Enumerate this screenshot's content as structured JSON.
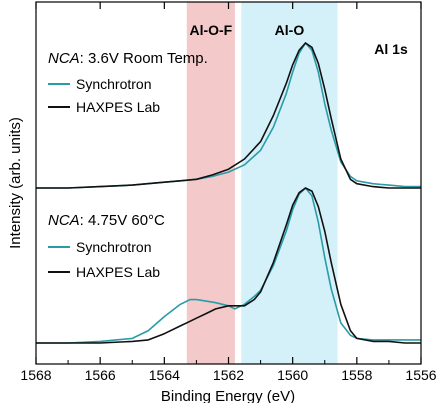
{
  "chart_data": {
    "type": "line",
    "xlabel": "Binding Energy (eV)",
    "ylabel": "Intensity (arb. units)",
    "xlim": [
      1568,
      1556
    ],
    "x_reversed": true,
    "x_ticks": [
      "1568",
      "1566",
      "1564",
      "1562",
      "1560",
      "1558",
      "1556"
    ],
    "y_ticks_shown": false,
    "grid": false,
    "corner_label": "Al 1s",
    "regions": [
      {
        "label": "Al-O-F",
        "x_range": [
          1563.3,
          1561.8
        ],
        "color": "#f4c9c9"
      },
      {
        "label": "Al-O",
        "x_range": [
          1561.6,
          1558.6
        ],
        "color": "#d4f0f8"
      }
    ],
    "panels": [
      {
        "condition_prefix": "NCA",
        "condition_rest": ": 3.6V Room Temp.",
        "offset": 1.0,
        "series": [
          {
            "name": "Synchrotron",
            "color": "#2a9ca8",
            "x": [
              1568,
              1567,
              1566,
              1565,
              1564,
              1563.5,
              1563,
              1562.5,
              1562,
              1561.5,
              1561,
              1560.6,
              1560.2,
              1560.0,
              1559.8,
              1559.6,
              1559.4,
              1559.2,
              1559.0,
              1558.8,
              1558.5,
              1558.2,
              1558.0,
              1557.5,
              1557,
              1556.5,
              1556
            ],
            "y": [
              0.0,
              0.0,
              0.01,
              0.02,
              0.04,
              0.05,
              0.06,
              0.08,
              0.11,
              0.16,
              0.26,
              0.42,
              0.65,
              0.8,
              0.93,
              1.0,
              0.95,
              0.8,
              0.58,
              0.4,
              0.18,
              0.08,
              0.05,
              0.03,
              0.02,
              0.01,
              0.01
            ]
          },
          {
            "name": "HAXPES Lab",
            "color": "#111111",
            "x": [
              1568,
              1567,
              1566,
              1565,
              1564,
              1563.5,
              1563,
              1562.5,
              1562,
              1561.5,
              1561,
              1560.6,
              1560.2,
              1560.0,
              1559.8,
              1559.6,
              1559.4,
              1559.2,
              1559.0,
              1558.8,
              1558.5,
              1558.2,
              1558.0,
              1557.5,
              1557,
              1556.5,
              1556
            ],
            "y": [
              0.0,
              0.0,
              0.01,
              0.02,
              0.04,
              0.05,
              0.06,
              0.09,
              0.13,
              0.2,
              0.32,
              0.5,
              0.72,
              0.85,
              0.95,
              1.0,
              0.97,
              0.86,
              0.68,
              0.48,
              0.2,
              0.06,
              0.03,
              0.01,
              0.0,
              0.0,
              0.0
            ]
          }
        ]
      },
      {
        "condition_prefix": "NCA",
        "condition_rest": ": 4.75V 60°C",
        "offset": 0.0,
        "series": [
          {
            "name": "Synchrotron",
            "color": "#2a9ca8",
            "x": [
              1568,
              1567,
              1566,
              1565,
              1564.5,
              1564,
              1563.5,
              1563.2,
              1563,
              1562.7,
              1562.4,
              1562,
              1561.8,
              1561.5,
              1561.2,
              1561,
              1560.6,
              1560.2,
              1560.0,
              1559.8,
              1559.6,
              1559.4,
              1559.2,
              1559.0,
              1558.8,
              1558.5,
              1558.2,
              1558.0,
              1557.5,
              1557,
              1556.5,
              1556
            ],
            "y": [
              0.0,
              0.0,
              0.01,
              0.03,
              0.08,
              0.17,
              0.25,
              0.28,
              0.28,
              0.27,
              0.26,
              0.24,
              0.22,
              0.25,
              0.3,
              0.34,
              0.5,
              0.72,
              0.86,
              0.96,
              1.0,
              0.95,
              0.78,
              0.55,
              0.35,
              0.13,
              0.05,
              0.03,
              0.02,
              0.02,
              0.02,
              0.02
            ]
          },
          {
            "name": "HAXPES Lab",
            "color": "#111111",
            "x": [
              1568,
              1567,
              1566,
              1565,
              1564.5,
              1564,
              1563.5,
              1563.2,
              1563,
              1562.7,
              1562.4,
              1562,
              1561.8,
              1561.5,
              1561.2,
              1561,
              1560.6,
              1560.2,
              1560.0,
              1559.8,
              1559.6,
              1559.4,
              1559.2,
              1559.0,
              1558.8,
              1558.5,
              1558.2,
              1558.0,
              1557.5,
              1557,
              1556.5,
              1556
            ],
            "y": [
              0.0,
              0.0,
              0.0,
              0.01,
              0.02,
              0.06,
              0.11,
              0.14,
              0.16,
              0.19,
              0.22,
              0.24,
              0.24,
              0.24,
              0.28,
              0.33,
              0.52,
              0.76,
              0.89,
              0.97,
              1.0,
              0.98,
              0.88,
              0.72,
              0.52,
              0.25,
              0.08,
              0.03,
              0.01,
              0.01,
              0.0,
              0.0
            ]
          }
        ]
      }
    ]
  }
}
